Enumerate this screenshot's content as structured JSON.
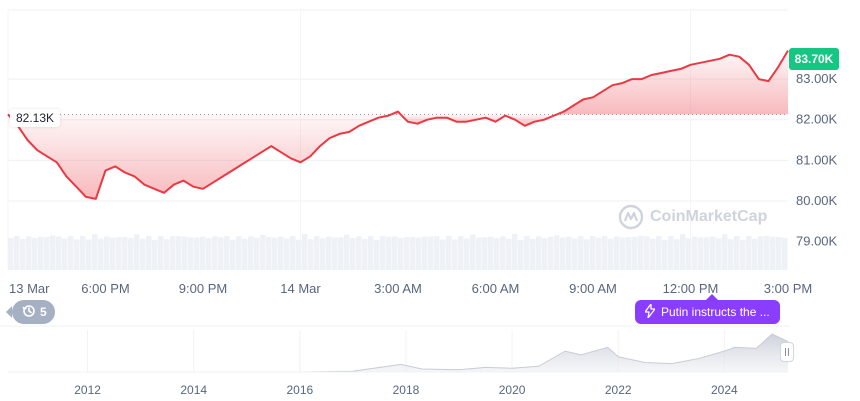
{
  "price_tag": "83.70K",
  "reference_label": "82.13K",
  "watermark": "CoinMarketCap",
  "events": {
    "count": "5",
    "icon": "history-icon"
  },
  "news": {
    "icon": "lightning-icon",
    "label": "Putin instructs the ..."
  },
  "colors": {
    "up": "#16c784",
    "down": "#ea3943",
    "grid": "#eef0f3",
    "axis_text": "#58667e",
    "news": "#8b3dff",
    "volume": "#eef1f6"
  },
  "chart_data": [
    {
      "type": "line",
      "title": "",
      "reference_value": 82.13,
      "y_unit": "K",
      "y_ticks": [
        "79.00K",
        "80.00K",
        "81.00K",
        "82.00K",
        "83.00K"
      ],
      "ylim": [
        78.3,
        84.7
      ],
      "x_ticks": [
        "13 Mar",
        "6:00 PM",
        "9:00 PM",
        "14 Mar",
        "3:00 AM",
        "6:00 AM",
        "9:00 AM",
        "12:00 PM",
        "3:00 PM"
      ],
      "x_hours": [
        0,
        3,
        6,
        9,
        12,
        15,
        18,
        21,
        24
      ],
      "grid": true,
      "series": [
        {
          "x": [
            0,
            0.3,
            0.6,
            0.9,
            1.2,
            1.5,
            1.8,
            2.1,
            2.4,
            2.7,
            3.0,
            3.3,
            3.6,
            3.9,
            4.2,
            4.5,
            4.8,
            5.1,
            5.4,
            5.7,
            6.0,
            6.3,
            6.6,
            6.9,
            7.2,
            7.5,
            7.8,
            8.1,
            8.4,
            8.7,
            9.0,
            9.3,
            9.6,
            9.9,
            10.2,
            10.5,
            10.8,
            11.1,
            11.4,
            11.7,
            12.0,
            12.3,
            12.6,
            12.9,
            13.2,
            13.5,
            13.8,
            14.1,
            14.4,
            14.7,
            15.0,
            15.3,
            15.6,
            15.9,
            16.2,
            16.5,
            16.8,
            17.1,
            17.4,
            17.7,
            18.0,
            18.3,
            18.6,
            18.9,
            19.2,
            19.5,
            19.8,
            20.1,
            20.4,
            20.7,
            21.0,
            21.3,
            21.6,
            21.9,
            22.2,
            22.5,
            22.8,
            23.1,
            23.4,
            23.7,
            24.0
          ],
          "values": [
            82.13,
            81.85,
            81.5,
            81.25,
            81.1,
            80.95,
            80.6,
            80.35,
            80.1,
            80.05,
            80.75,
            80.85,
            80.7,
            80.6,
            80.4,
            80.3,
            80.2,
            80.4,
            80.5,
            80.35,
            80.3,
            80.45,
            80.6,
            80.75,
            80.9,
            81.05,
            81.2,
            81.35,
            81.2,
            81.05,
            80.95,
            81.1,
            81.35,
            81.55,
            81.65,
            81.7,
            81.85,
            81.95,
            82.05,
            82.1,
            82.2,
            81.95,
            81.9,
            82.0,
            82.05,
            82.05,
            81.95,
            81.95,
            82.0,
            82.05,
            81.95,
            82.1,
            82.0,
            81.85,
            81.95,
            82.0,
            82.1,
            82.2,
            82.35,
            82.5,
            82.55,
            82.7,
            82.85,
            82.9,
            83.0,
            83.0,
            83.1,
            83.15,
            83.2,
            83.25,
            83.35,
            83.4,
            83.45,
            83.5,
            83.6,
            83.55,
            83.35,
            83.0,
            82.95,
            83.3,
            83.7
          ]
        }
      ]
    },
    {
      "type": "area",
      "x_ticks": [
        "2012",
        "2014",
        "2016",
        "2018",
        "2020",
        "2022",
        "2024"
      ],
      "x_years": [
        2012,
        2014,
        2016,
        2018,
        2020,
        2022,
        2024
      ],
      "xlim": [
        2010.5,
        2025.2
      ],
      "series": [
        {
          "x": [
            2010.5,
            2011,
            2012,
            2013,
            2014,
            2015,
            2016,
            2017,
            2017.9,
            2018.3,
            2019,
            2019.5,
            2020,
            2020.5,
            2021,
            2021.3,
            2021.8,
            2022,
            2022.5,
            2023,
            2023.5,
            2024,
            2024.2,
            2024.6,
            2024.9,
            2025.2
          ],
          "values": [
            0,
            0,
            0,
            0.001,
            0.001,
            0.001,
            0.001,
            0.02,
            0.2,
            0.08,
            0.06,
            0.12,
            0.1,
            0.15,
            0.55,
            0.45,
            0.65,
            0.4,
            0.25,
            0.22,
            0.35,
            0.55,
            0.65,
            0.62,
            1.0,
            0.8
          ]
        }
      ]
    }
  ]
}
